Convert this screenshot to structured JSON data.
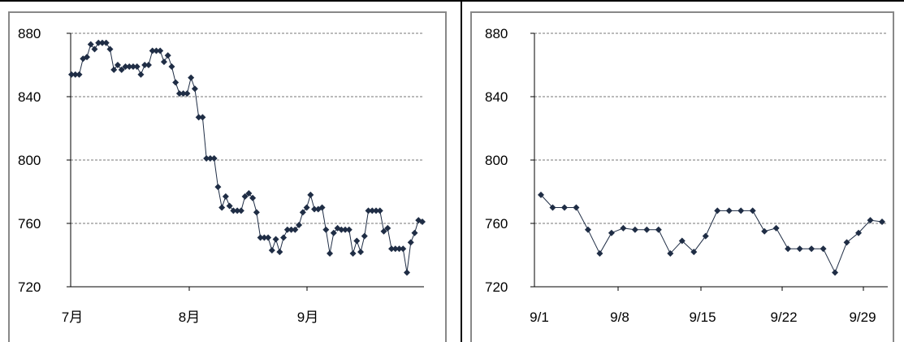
{
  "chart_data": [
    {
      "type": "line",
      "title": "",
      "xlabel": "",
      "ylabel": "",
      "ylim": [
        720,
        880
      ],
      "yticks": [
        720,
        760,
        800,
        840,
        880
      ],
      "ytick_labels": [
        "720",
        "760",
        "800",
        "840",
        "880"
      ],
      "xtick_labels": [
        "7月",
        "8月",
        "9月"
      ],
      "grid": true,
      "marker": "diamond",
      "color": "#1f2d45",
      "series": [
        {
          "values": [
            854,
            854,
            854,
            864,
            865,
            873,
            870,
            874,
            874,
            874,
            870,
            857,
            860,
            857,
            859,
            859,
            859,
            859,
            854,
            860,
            860,
            869,
            869,
            869,
            862,
            866,
            859,
            849,
            842,
            842,
            842,
            852,
            845,
            827,
            827,
            801,
            801,
            801,
            783,
            770,
            777,
            771,
            768,
            768,
            768,
            777,
            779,
            776,
            767,
            751,
            751,
            751,
            743,
            750,
            742,
            751,
            756,
            756,
            756,
            759,
            767,
            770,
            778,
            769,
            769,
            770,
            756,
            741,
            754,
            757,
            756,
            756,
            756,
            741,
            749,
            742,
            752,
            768,
            768,
            768,
            768,
            755,
            757,
            744,
            744,
            744,
            744,
            729,
            748,
            754,
            762,
            761
          ]
        }
      ]
    },
    {
      "type": "line",
      "title": "",
      "xlabel": "",
      "ylabel": "",
      "ylim": [
        720,
        880
      ],
      "yticks": [
        720,
        760,
        800,
        840,
        880
      ],
      "ytick_labels": [
        "720",
        "760",
        "800",
        "840",
        "880"
      ],
      "xtick_labels": [
        "9/1",
        "9/8",
        "9/15",
        "9/22",
        "9/29"
      ],
      "grid": true,
      "marker": "diamond",
      "color": "#1f2d45",
      "series": [
        {
          "x": [
            1,
            2,
            3,
            4,
            5,
            6,
            7,
            8,
            9,
            10,
            11,
            12,
            13,
            14,
            15,
            16,
            17,
            18,
            19,
            20,
            21,
            22,
            23,
            24,
            25,
            26,
            27,
            28,
            29,
            30
          ],
          "values": [
            778,
            770,
            770,
            770,
            756,
            741,
            754,
            757,
            756,
            756,
            756,
            741,
            749,
            742,
            752,
            768,
            768,
            768,
            768,
            755,
            757,
            744,
            744,
            744,
            744,
            729,
            748,
            754,
            762,
            761
          ]
        }
      ]
    }
  ]
}
